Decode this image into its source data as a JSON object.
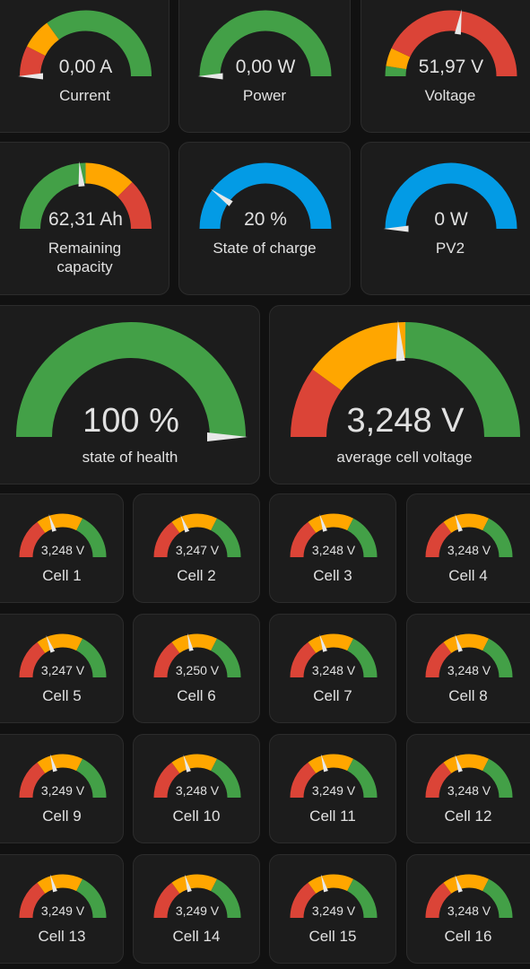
{
  "colors": {
    "green": "#43a047",
    "yellow": "#ffa600",
    "red": "#db4437",
    "blue": "#039be5",
    "needle": "#e8e8e8",
    "card_bg": "#1c1c1c",
    "text": "#e1e1e1"
  },
  "gauges": [
    {
      "id": "current",
      "label": "Current",
      "value_text": "0,00 A",
      "needle": 0.0,
      "segments": [
        [
          "red",
          0,
          0.15
        ],
        [
          "yellow",
          0.15,
          0.3
        ],
        [
          "green",
          0.3,
          1.0
        ]
      ]
    },
    {
      "id": "power",
      "label": "Power",
      "value_text": "0,00 W",
      "needle": 0.0,
      "segments": [
        [
          "green",
          0,
          1.0
        ]
      ]
    },
    {
      "id": "voltage",
      "label": "Voltage",
      "value_text": "51,97 V",
      "needle": 0.55,
      "segments": [
        [
          "green",
          0,
          0.05
        ],
        [
          "yellow",
          0.05,
          0.14
        ],
        [
          "red",
          0.14,
          1.0
        ]
      ]
    },
    {
      "id": "remaining-capacity",
      "label": "Remaining\ncapacity",
      "value_text": "62,31 Ah",
      "needle": 0.47,
      "segments": [
        [
          "green",
          0,
          0.5
        ],
        [
          "yellow",
          0.5,
          0.75
        ],
        [
          "red",
          0.75,
          1.0
        ]
      ]
    },
    {
      "id": "state-of-charge",
      "label": "State of charge",
      "value_text": "20 %",
      "needle": 0.2,
      "segments": [
        [
          "blue",
          0,
          1.0
        ]
      ]
    },
    {
      "id": "pv2",
      "label": "PV2",
      "value_text": "0 W",
      "needle": 0.0,
      "segments": [
        [
          "blue",
          0,
          1.0
        ]
      ]
    },
    {
      "id": "state-of-health",
      "label": "state of health",
      "value_text": "100 %",
      "needle": 1.0,
      "segments": [
        [
          "green",
          0,
          1.0
        ]
      ]
    },
    {
      "id": "average-cell-voltage",
      "label": "average cell voltage",
      "value_text": "3,248 V",
      "needle": 0.48,
      "segments": [
        [
          "red",
          0,
          0.2
        ],
        [
          "yellow",
          0.2,
          0.5
        ],
        [
          "green",
          0.5,
          1.0
        ]
      ]
    },
    {
      "id": "cell-1",
      "label": "Cell 1",
      "value_text": "3,248 V",
      "needle": 0.4,
      "segments": [
        [
          "red",
          0,
          0.3
        ],
        [
          "yellow",
          0.3,
          0.65
        ],
        [
          "green",
          0.65,
          1.0
        ]
      ]
    },
    {
      "id": "cell-2",
      "label": "Cell 2",
      "value_text": "3,247 V",
      "needle": 0.38,
      "segments": [
        [
          "red",
          0,
          0.3
        ],
        [
          "yellow",
          0.3,
          0.65
        ],
        [
          "green",
          0.65,
          1.0
        ]
      ]
    },
    {
      "id": "cell-3",
      "label": "Cell 3",
      "value_text": "3,248 V",
      "needle": 0.4,
      "segments": [
        [
          "red",
          0,
          0.3
        ],
        [
          "yellow",
          0.3,
          0.65
        ],
        [
          "green",
          0.65,
          1.0
        ]
      ]
    },
    {
      "id": "cell-4",
      "label": "Cell 4",
      "value_text": "3,248 V",
      "needle": 0.4,
      "segments": [
        [
          "red",
          0,
          0.3
        ],
        [
          "yellow",
          0.3,
          0.65
        ],
        [
          "green",
          0.65,
          1.0
        ]
      ]
    },
    {
      "id": "cell-5",
      "label": "Cell 5",
      "value_text": "3,247 V",
      "needle": 0.38,
      "segments": [
        [
          "red",
          0,
          0.3
        ],
        [
          "yellow",
          0.3,
          0.65
        ],
        [
          "green",
          0.65,
          1.0
        ]
      ]
    },
    {
      "id": "cell-6",
      "label": "Cell 6",
      "value_text": "3,250 V",
      "needle": 0.43,
      "segments": [
        [
          "red",
          0,
          0.3
        ],
        [
          "yellow",
          0.3,
          0.65
        ],
        [
          "green",
          0.65,
          1.0
        ]
      ]
    },
    {
      "id": "cell-7",
      "label": "Cell 7",
      "value_text": "3,248 V",
      "needle": 0.4,
      "segments": [
        [
          "red",
          0,
          0.3
        ],
        [
          "yellow",
          0.3,
          0.65
        ],
        [
          "green",
          0.65,
          1.0
        ]
      ]
    },
    {
      "id": "cell-8",
      "label": "Cell 8",
      "value_text": "3,248 V",
      "needle": 0.4,
      "segments": [
        [
          "red",
          0,
          0.3
        ],
        [
          "yellow",
          0.3,
          0.65
        ],
        [
          "green",
          0.65,
          1.0
        ]
      ]
    },
    {
      "id": "cell-9",
      "label": "Cell 9",
      "value_text": "3,249 V",
      "needle": 0.41,
      "segments": [
        [
          "red",
          0,
          0.3
        ],
        [
          "yellow",
          0.3,
          0.65
        ],
        [
          "green",
          0.65,
          1.0
        ]
      ]
    },
    {
      "id": "cell-10",
      "label": "Cell 10",
      "value_text": "3,248 V",
      "needle": 0.4,
      "segments": [
        [
          "red",
          0,
          0.3
        ],
        [
          "yellow",
          0.3,
          0.65
        ],
        [
          "green",
          0.65,
          1.0
        ]
      ]
    },
    {
      "id": "cell-11",
      "label": "Cell 11",
      "value_text": "3,249 V",
      "needle": 0.41,
      "segments": [
        [
          "red",
          0,
          0.3
        ],
        [
          "yellow",
          0.3,
          0.65
        ],
        [
          "green",
          0.65,
          1.0
        ]
      ]
    },
    {
      "id": "cell-12",
      "label": "Cell 12",
      "value_text": "3,248 V",
      "needle": 0.4,
      "segments": [
        [
          "red",
          0,
          0.3
        ],
        [
          "yellow",
          0.3,
          0.65
        ],
        [
          "green",
          0.65,
          1.0
        ]
      ]
    },
    {
      "id": "cell-13",
      "label": "Cell 13",
      "value_text": "3,249 V",
      "needle": 0.41,
      "segments": [
        [
          "red",
          0,
          0.3
        ],
        [
          "yellow",
          0.3,
          0.65
        ],
        [
          "green",
          0.65,
          1.0
        ]
      ]
    },
    {
      "id": "cell-14",
      "label": "Cell 14",
      "value_text": "3,249 V",
      "needle": 0.41,
      "segments": [
        [
          "red",
          0,
          0.3
        ],
        [
          "yellow",
          0.3,
          0.65
        ],
        [
          "green",
          0.65,
          1.0
        ]
      ]
    },
    {
      "id": "cell-15",
      "label": "Cell 15",
      "value_text": "3,249 V",
      "needle": 0.41,
      "segments": [
        [
          "red",
          0,
          0.3
        ],
        [
          "yellow",
          0.3,
          0.65
        ],
        [
          "green",
          0.65,
          1.0
        ]
      ]
    },
    {
      "id": "cell-16",
      "label": "Cell 16",
      "value_text": "3,248 V",
      "needle": 0.4,
      "segments": [
        [
          "red",
          0,
          0.3
        ],
        [
          "yellow",
          0.3,
          0.65
        ],
        [
          "green",
          0.65,
          1.0
        ]
      ]
    }
  ]
}
